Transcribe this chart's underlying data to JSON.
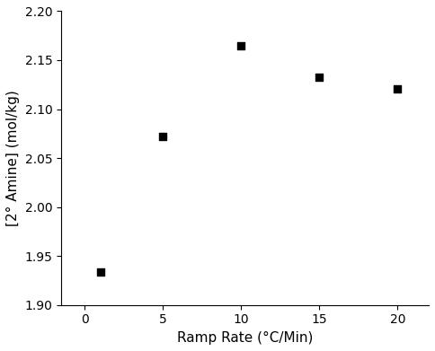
{
  "x": [
    1,
    5,
    10,
    15,
    20
  ],
  "y": [
    1.934,
    2.072,
    2.165,
    2.133,
    2.121
  ],
  "xlabel": "Ramp Rate (°C/Min)",
  "ylabel": "[2° Amine] (mol/kg)",
  "xlim": [
    -1.5,
    22
  ],
  "ylim": [
    1.9,
    2.2
  ],
  "xticks": [
    0,
    5,
    10,
    15,
    20
  ],
  "yticks": [
    1.9,
    1.95,
    2.0,
    2.05,
    2.1,
    2.15,
    2.2
  ],
  "marker": "s",
  "marker_color": "black",
  "marker_size": 6,
  "background_color": "#ffffff",
  "tick_fontsize": 10,
  "label_fontsize": 11
}
